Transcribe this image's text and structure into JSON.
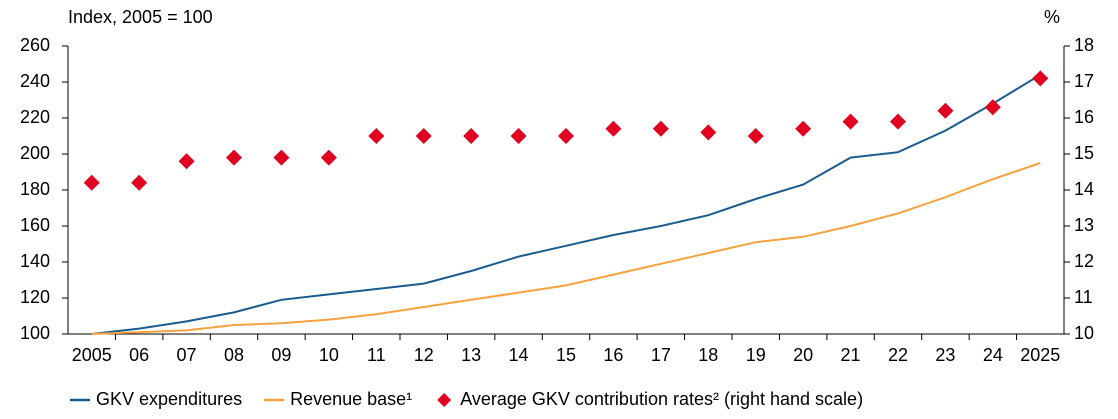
{
  "chart_data": {
    "type": "line",
    "y_label": "Index, 2005 = 100",
    "y2_label": "%",
    "categories": [
      "2005",
      "06",
      "07",
      "08",
      "09",
      "10",
      "11",
      "12",
      "13",
      "14",
      "15",
      "16",
      "17",
      "18",
      "19",
      "20",
      "21",
      "22",
      "23",
      "24",
      "2025"
    ],
    "series": [
      {
        "name": "GKV expenditures",
        "color": "#1b5c8e",
        "kind": "line",
        "values": [
          100,
          103,
          107,
          112,
          119,
          122,
          125,
          128,
          135,
          143,
          149,
          155,
          160,
          166,
          175,
          183,
          198,
          201,
          213,
          228,
          244
        ]
      },
      {
        "name": "Revenue base¹",
        "color": "#f4a340",
        "kind": "line",
        "values": [
          100,
          101,
          102,
          105,
          106,
          108,
          111,
          115,
          119,
          123,
          127,
          133,
          139,
          145,
          151,
          154,
          160,
          167,
          176,
          186,
          195
        ]
      },
      {
        "name": "Average GKV contribution rates² (right hand scale)",
        "color": "#e1001f",
        "kind": "diamond",
        "axis": "y2",
        "values": [
          14.2,
          14.2,
          14.8,
          14.9,
          14.9,
          14.9,
          15.5,
          15.5,
          15.5,
          15.5,
          15.5,
          15.7,
          15.7,
          15.6,
          15.5,
          15.7,
          15.9,
          15.9,
          16.2,
          16.3,
          17.1
        ]
      }
    ],
    "ylim": [
      100,
      260
    ],
    "yticks": [
      100,
      120,
      140,
      160,
      180,
      200,
      220,
      240,
      260
    ],
    "y2lim": [
      10,
      18
    ],
    "y2ticks": [
      10,
      11,
      12,
      13,
      14,
      15,
      16,
      17,
      18
    ]
  }
}
